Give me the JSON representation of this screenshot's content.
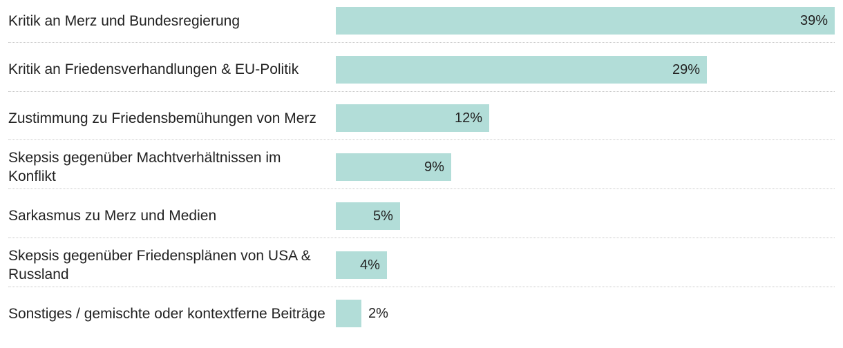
{
  "chart_data": {
    "type": "bar",
    "orientation": "horizontal",
    "categories": [
      "Kritik an Merz und Bundesregierung",
      "Kritik an Friedensverhandlungen & EU-Politik",
      "Zustimmung zu Friedensbemühungen von Merz",
      "Skepsis gegenüber Machtverhältnissen im Konflikt",
      "Sarkasmus zu Merz und Medien",
      "Skepsis gegenüber Friedensplänen von USA & Russland",
      "Sonstiges / gemischte oder kontextferne Beiträge"
    ],
    "values": [
      39,
      29,
      12,
      9,
      5,
      4,
      2
    ],
    "value_labels": [
      "39%",
      "29%",
      "12%",
      "9%",
      "5%",
      "4%",
      "2%"
    ],
    "unit": "%",
    "xlim": [
      0,
      39
    ],
    "bar_color": "#b2ddd8",
    "text_color": "#222222",
    "title": "",
    "xlabel": "",
    "ylabel": ""
  }
}
